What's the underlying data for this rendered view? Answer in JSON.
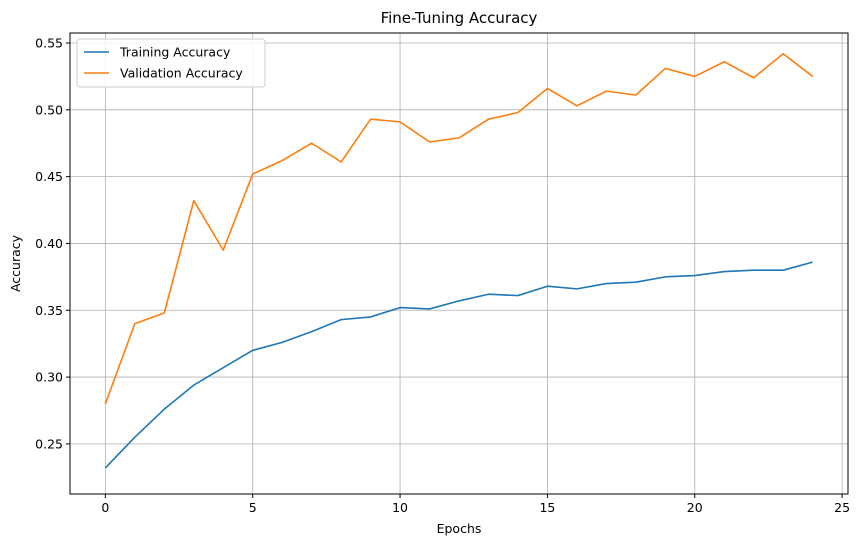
{
  "chart_data": {
    "type": "line",
    "title": "Fine-Tuning Accuracy",
    "xlabel": "Epochs",
    "ylabel": "Accuracy",
    "xlim": [
      -1.2,
      25.2
    ],
    "ylim": [
      0.2125,
      0.5575
    ],
    "xticks": [
      0,
      5,
      10,
      15,
      20,
      25
    ],
    "yticks": [
      0.25,
      0.3,
      0.35,
      0.4,
      0.45,
      0.5,
      0.55
    ],
    "xtick_labels": [
      "0",
      "5",
      "10",
      "15",
      "20",
      "25"
    ],
    "ytick_labels": [
      "0.25",
      "0.30",
      "0.35",
      "0.40",
      "0.45",
      "0.50",
      "0.55"
    ],
    "grid": true,
    "legend_position": "upper-left",
    "x": [
      0,
      1,
      2,
      3,
      4,
      5,
      6,
      7,
      8,
      9,
      10,
      11,
      12,
      13,
      14,
      15,
      16,
      17,
      18,
      19,
      20,
      21,
      22,
      23,
      24
    ],
    "series": [
      {
        "name": "Training Accuracy",
        "color": "#1f77b4",
        "values": [
          0.232,
          0.255,
          0.276,
          0.294,
          0.307,
          0.32,
          0.326,
          0.334,
          0.343,
          0.345,
          0.352,
          0.351,
          0.357,
          0.362,
          0.361,
          0.368,
          0.366,
          0.37,
          0.371,
          0.375,
          0.376,
          0.379,
          0.38,
          0.38,
          0.386
        ]
      },
      {
        "name": "Validation Accuracy",
        "color": "#ff7f0e",
        "values": [
          0.28,
          0.34,
          0.348,
          0.432,
          0.395,
          0.452,
          0.462,
          0.475,
          0.461,
          0.493,
          0.491,
          0.476,
          0.479,
          0.493,
          0.498,
          0.516,
          0.503,
          0.514,
          0.511,
          0.531,
          0.525,
          0.536,
          0.524,
          0.542,
          0.525
        ]
      }
    ]
  }
}
